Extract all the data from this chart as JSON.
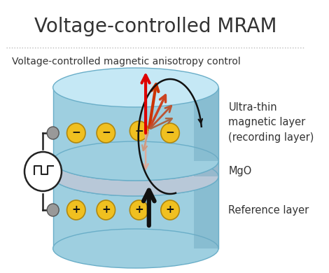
{
  "title": "Voltage-controlled MRAM",
  "subtitle": "Voltage-controlled magnetic anisotropy control",
  "label_top": "Ultra-thin\nmagnetic layer\n(recording layer)",
  "label_mgo": "MgO",
  "label_ref": "Reference layer",
  "bg_color": "#ffffff",
  "cyl_body_color": "#9ecfe0",
  "cyl_top_color": "#c5e8f5",
  "cyl_edge_color": "#6aaec8",
  "cyl_shade_color": "#6fa8c0",
  "mgo_color": "#b8c8d8",
  "mgo_top_color": "#ccdde8",
  "ball_color": "#f0c020",
  "ball_edge": "#b08810",
  "title_fontsize": 20,
  "subtitle_fontsize": 10,
  "label_fontsize": 10.5
}
